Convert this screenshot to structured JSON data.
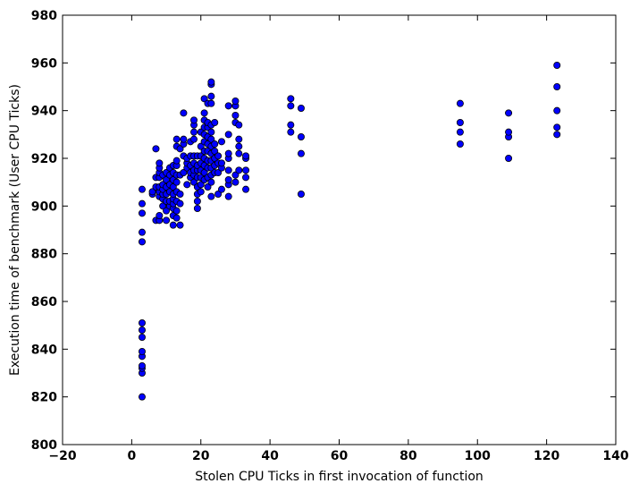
{
  "chart_data": {
    "type": "scatter",
    "title": "",
    "xlabel": "Stolen CPU Ticks in first invocation of function",
    "ylabel": "Execution time of benchmark (User CPU Ticks)",
    "xlim": [
      -20,
      140
    ],
    "ylim": [
      800,
      980
    ],
    "xticks": [
      -20,
      0,
      20,
      40,
      60,
      80,
      100,
      120,
      140
    ],
    "yticks": [
      800,
      820,
      840,
      860,
      880,
      900,
      920,
      940,
      960,
      980
    ],
    "xtick_labels": [
      "−20",
      "0",
      "20",
      "40",
      "60",
      "80",
      "100",
      "120",
      "140"
    ],
    "ytick_labels": [
      "800",
      "820",
      "840",
      "860",
      "880",
      "900",
      "920",
      "940",
      "960",
      "980"
    ],
    "grid": false,
    "marker_color": "#0000ff",
    "marker_edge_color": "#000000",
    "points": [
      [
        3,
        820
      ],
      [
        3,
        830
      ],
      [
        3,
        832
      ],
      [
        3,
        833
      ],
      [
        3,
        837
      ],
      [
        3,
        839
      ],
      [
        3,
        845
      ],
      [
        3,
        848
      ],
      [
        3,
        851
      ],
      [
        3,
        885
      ],
      [
        3,
        889
      ],
      [
        3,
        897
      ],
      [
        3,
        901
      ],
      [
        3,
        907
      ],
      [
        6,
        905
      ],
      [
        6,
        906
      ],
      [
        7,
        894
      ],
      [
        7,
        908
      ],
      [
        7,
        912
      ],
      [
        7,
        924
      ],
      [
        8,
        894
      ],
      [
        8,
        896
      ],
      [
        8,
        904
      ],
      [
        8,
        906
      ],
      [
        8,
        908
      ],
      [
        8,
        912
      ],
      [
        8,
        914
      ],
      [
        8,
        916
      ],
      [
        8,
        918
      ],
      [
        9,
        900
      ],
      [
        9,
        903
      ],
      [
        9,
        905
      ],
      [
        9,
        907
      ],
      [
        9,
        909
      ],
      [
        9,
        913
      ],
      [
        10,
        894
      ],
      [
        10,
        898
      ],
      [
        10,
        902
      ],
      [
        10,
        905
      ],
      [
        10,
        908
      ],
      [
        10,
        911
      ],
      [
        10,
        914
      ],
      [
        11,
        900
      ],
      [
        11,
        902
      ],
      [
        11,
        906
      ],
      [
        11,
        909
      ],
      [
        11,
        913
      ],
      [
        11,
        916
      ],
      [
        12,
        892
      ],
      [
        12,
        896
      ],
      [
        12,
        899
      ],
      [
        12,
        901
      ],
      [
        12,
        903
      ],
      [
        12,
        905
      ],
      [
        12,
        908
      ],
      [
        12,
        911
      ],
      [
        12,
        914
      ],
      [
        12,
        917
      ],
      [
        13,
        895
      ],
      [
        13,
        898
      ],
      [
        13,
        902
      ],
      [
        13,
        906
      ],
      [
        13,
        910
      ],
      [
        13,
        913
      ],
      [
        13,
        917
      ],
      [
        13,
        919
      ],
      [
        13,
        925
      ],
      [
        13,
        928
      ],
      [
        14,
        892
      ],
      [
        14,
        901
      ],
      [
        14,
        905
      ],
      [
        14,
        913
      ],
      [
        14,
        924
      ],
      [
        15,
        914
      ],
      [
        15,
        921
      ],
      [
        15,
        926
      ],
      [
        15,
        928
      ],
      [
        15,
        939
      ],
      [
        16,
        909
      ],
      [
        16,
        916
      ],
      [
        16,
        918
      ],
      [
        16,
        920
      ],
      [
        17,
        912
      ],
      [
        17,
        914
      ],
      [
        17,
        917
      ],
      [
        17,
        921
      ],
      [
        17,
        927
      ],
      [
        18,
        910
      ],
      [
        18,
        913
      ],
      [
        18,
        915
      ],
      [
        18,
        918
      ],
      [
        18,
        921
      ],
      [
        18,
        928
      ],
      [
        18,
        931
      ],
      [
        18,
        934
      ],
      [
        18,
        936
      ],
      [
        19,
        899
      ],
      [
        19,
        902
      ],
      [
        19,
        905
      ],
      [
        19,
        908
      ],
      [
        19,
        912
      ],
      [
        19,
        915
      ],
      [
        19,
        917
      ],
      [
        19,
        921
      ],
      [
        20,
        906
      ],
      [
        20,
        909
      ],
      [
        20,
        912
      ],
      [
        20,
        915
      ],
      [
        20,
        918
      ],
      [
        20,
        921
      ],
      [
        20,
        925
      ],
      [
        20,
        931
      ],
      [
        21,
        911
      ],
      [
        21,
        914
      ],
      [
        21,
        917
      ],
      [
        21,
        920
      ],
      [
        21,
        923
      ],
      [
        21,
        927
      ],
      [
        21,
        930
      ],
      [
        21,
        933
      ],
      [
        21,
        936
      ],
      [
        21,
        939
      ],
      [
        21,
        945
      ],
      [
        22,
        908
      ],
      [
        22,
        912
      ],
      [
        22,
        916
      ],
      [
        22,
        919
      ],
      [
        22,
        923
      ],
      [
        22,
        926
      ],
      [
        22,
        929
      ],
      [
        22,
        933
      ],
      [
        22,
        935
      ],
      [
        22,
        943
      ],
      [
        23,
        904
      ],
      [
        23,
        910
      ],
      [
        23,
        913
      ],
      [
        23,
        916
      ],
      [
        23,
        919
      ],
      [
        23,
        922
      ],
      [
        23,
        925
      ],
      [
        23,
        928
      ],
      [
        23,
        931
      ],
      [
        23,
        934
      ],
      [
        23,
        943
      ],
      [
        23,
        946
      ],
      [
        23,
        951
      ],
      [
        23,
        952
      ],
      [
        24,
        914
      ],
      [
        24,
        917
      ],
      [
        24,
        920
      ],
      [
        24,
        923
      ],
      [
        24,
        926
      ],
      [
        24,
        935
      ],
      [
        25,
        905
      ],
      [
        25,
        914
      ],
      [
        25,
        918
      ],
      [
        25,
        921
      ],
      [
        26,
        907
      ],
      [
        26,
        916
      ],
      [
        26,
        918
      ],
      [
        26,
        927
      ],
      [
        28,
        904
      ],
      [
        28,
        909
      ],
      [
        28,
        911
      ],
      [
        28,
        915
      ],
      [
        28,
        920
      ],
      [
        28,
        922
      ],
      [
        28,
        930
      ],
      [
        28,
        942
      ],
      [
        30,
        910
      ],
      [
        30,
        913
      ],
      [
        30,
        935
      ],
      [
        30,
        938
      ],
      [
        30,
        942
      ],
      [
        30,
        944
      ],
      [
        31,
        915
      ],
      [
        31,
        922
      ],
      [
        31,
        925
      ],
      [
        31,
        928
      ],
      [
        31,
        934
      ],
      [
        33,
        907
      ],
      [
        33,
        912
      ],
      [
        33,
        915
      ],
      [
        33,
        920
      ],
      [
        33,
        921
      ],
      [
        46,
        931
      ],
      [
        46,
        934
      ],
      [
        46,
        942
      ],
      [
        46,
        945
      ],
      [
        49,
        905
      ],
      [
        49,
        922
      ],
      [
        49,
        929
      ],
      [
        49,
        941
      ],
      [
        95,
        926
      ],
      [
        95,
        931
      ],
      [
        95,
        935
      ],
      [
        95,
        943
      ],
      [
        109,
        920
      ],
      [
        109,
        929
      ],
      [
        109,
        931
      ],
      [
        109,
        939
      ],
      [
        123,
        930
      ],
      [
        123,
        933
      ],
      [
        123,
        940
      ],
      [
        123,
        950
      ],
      [
        123,
        959
      ]
    ]
  }
}
